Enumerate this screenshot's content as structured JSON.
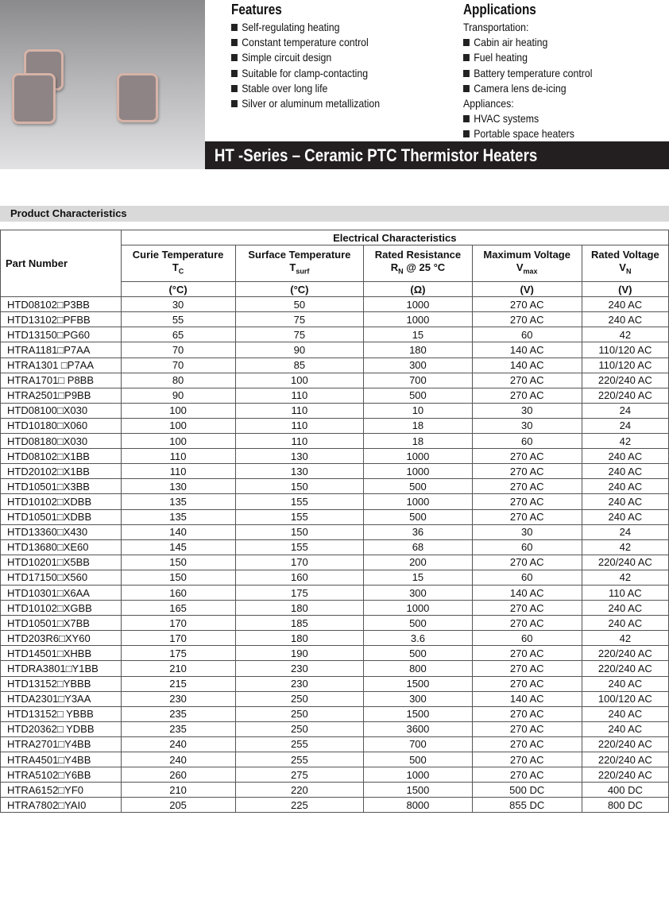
{
  "features": {
    "title": "Features",
    "items": [
      "Self-regulating heating",
      "Constant temperature control",
      "Simple circuit design",
      "Suitable for clamp-contacting",
      "Stable over long life",
      "Silver or aluminum metallization"
    ]
  },
  "applications": {
    "title": "Applications",
    "groups": [
      {
        "label": "Transportation:",
        "items": [
          "Cabin air heating",
          "Fuel heating",
          "Battery temperature control",
          "Camera lens de-icing"
        ]
      },
      {
        "label": "Appliances:",
        "items": [
          "HVAC systems",
          "Portable space heaters"
        ]
      }
    ]
  },
  "banner": "HT -Series – Ceramic PTC Thermistor Heaters",
  "section_title": "Product Characteristics",
  "table": {
    "part_header": "Part Number",
    "group_header": "Electrical Characteristics",
    "columns": [
      {
        "name": "Curie Temperature",
        "sym": "T",
        "sub": "C",
        "extra": "",
        "unit": "(°C)"
      },
      {
        "name": "Surface Temperature",
        "sym": "T",
        "sub": "surf",
        "extra": "",
        "unit": "(°C)"
      },
      {
        "name": "Rated Resistance",
        "sym": "R",
        "sub": "N",
        "extra": " @ 25 °C",
        "unit": "(Ω)"
      },
      {
        "name": "Maximum Voltage",
        "sym": "V",
        "sub": "max",
        "extra": "",
        "unit": "(V)"
      },
      {
        "name": "Rated Voltage",
        "sym": "V",
        "sub": "N",
        "extra": "",
        "unit": "(V)"
      }
    ],
    "rows": [
      [
        "HTD08102□P3BB",
        "30",
        "50",
        "1000",
        "270 AC",
        "240 AC"
      ],
      [
        "HTD13102□PFBB",
        "55",
        "75",
        "1000",
        "270 AC",
        "240 AC"
      ],
      [
        "HTD13150□PG60",
        "65",
        "75",
        "15",
        "60",
        "42"
      ],
      [
        "HTRA1181□P7AA",
        "70",
        "90",
        "180",
        "140 AC",
        "110/120 AC"
      ],
      [
        "HTRA1301 □P7AA",
        "70",
        "85",
        "300",
        "140 AC",
        "110/120 AC"
      ],
      [
        "HTRA1701□ P8BB",
        "80",
        "100",
        "700",
        "270 AC",
        "220/240 AC"
      ],
      [
        "HTRA2501□P9BB",
        "90",
        "110",
        "500",
        "270 AC",
        "220/240 AC"
      ],
      [
        "HTD08100□X030",
        "100",
        "110",
        "10",
        "30",
        "24"
      ],
      [
        "HTD10180□X060",
        "100",
        "110",
        "18",
        "30",
        "24"
      ],
      [
        "HTD08180□X030",
        "100",
        "110",
        "18",
        "60",
        "42"
      ],
      [
        "HTD08102□X1BB",
        "110",
        "130",
        "1000",
        "270 AC",
        "240 AC"
      ],
      [
        "HTD20102□X1BB",
        "110",
        "130",
        "1000",
        "270 AC",
        "240 AC"
      ],
      [
        "HTD10501□X3BB",
        "130",
        "150",
        "500",
        "270 AC",
        "240 AC"
      ],
      [
        "HTD10102□XDBB",
        "135",
        "155",
        "1000",
        "270 AC",
        "240 AC"
      ],
      [
        "HTD10501□XDBB",
        "135",
        "155",
        "500",
        "270 AC",
        "240 AC"
      ],
      [
        "HTD13360□X430",
        "140",
        "150",
        "36",
        "30",
        "24"
      ],
      [
        "HTD13680□XE60",
        "145",
        "155",
        "68",
        "60",
        "42"
      ],
      [
        "HTD10201□X5BB",
        "150",
        "170",
        "200",
        "270 AC",
        "220/240 AC"
      ],
      [
        "HTD17150□X560",
        "150",
        "160",
        "15",
        "60",
        "42"
      ],
      [
        "HTD10301□X6AA",
        "160",
        "175",
        "300",
        "140 AC",
        "110 AC"
      ],
      [
        "HTD10102□XGBB",
        "165",
        "180",
        "1000",
        "270 AC",
        "240 AC"
      ],
      [
        "HTD10501□X7BB",
        "170",
        "185",
        "500",
        "270 AC",
        "240 AC"
      ],
      [
        "HTD203R6□XY60",
        "170",
        "180",
        "3.6",
        "60",
        "42"
      ],
      [
        "HTD14501□XHBB",
        "175",
        "190",
        "500",
        "270 AC",
        "220/240 AC"
      ],
      [
        "HTDRA3801□Y1BB",
        "210",
        "230",
        "800",
        "270 AC",
        "220/240 AC"
      ],
      [
        "HTD13152□YBBB",
        "215",
        "230",
        "1500",
        "270 AC",
        "240 AC"
      ],
      [
        "HTDA2301□Y3AA",
        "230",
        "250",
        "300",
        "140 AC",
        "100/120 AC"
      ],
      [
        "HTD13152□ YBBB",
        "235",
        "250",
        "1500",
        "270 AC",
        "240 AC"
      ],
      [
        "HTD20362□ YDBB",
        "235",
        "250",
        "3600",
        "270 AC",
        "240 AC"
      ],
      [
        "HTRA2701□Y4BB",
        "240",
        "255",
        "700",
        "270 AC",
        "220/240 AC"
      ],
      [
        "HTRA4501□Y4BB",
        "240",
        "255",
        "500",
        "270 AC",
        "220/240 AC"
      ],
      [
        "HTRA5102□Y6BB",
        "260",
        "275",
        "1000",
        "270 AC",
        "220/240 AC"
      ],
      [
        "HTRA6152□YF0",
        "210",
        "220",
        "1500",
        "500 DC",
        "400 DC"
      ],
      [
        "HTRA7802□YAI0",
        "205",
        "225",
        "8000",
        "855 DC",
        "800 DC"
      ]
    ]
  }
}
